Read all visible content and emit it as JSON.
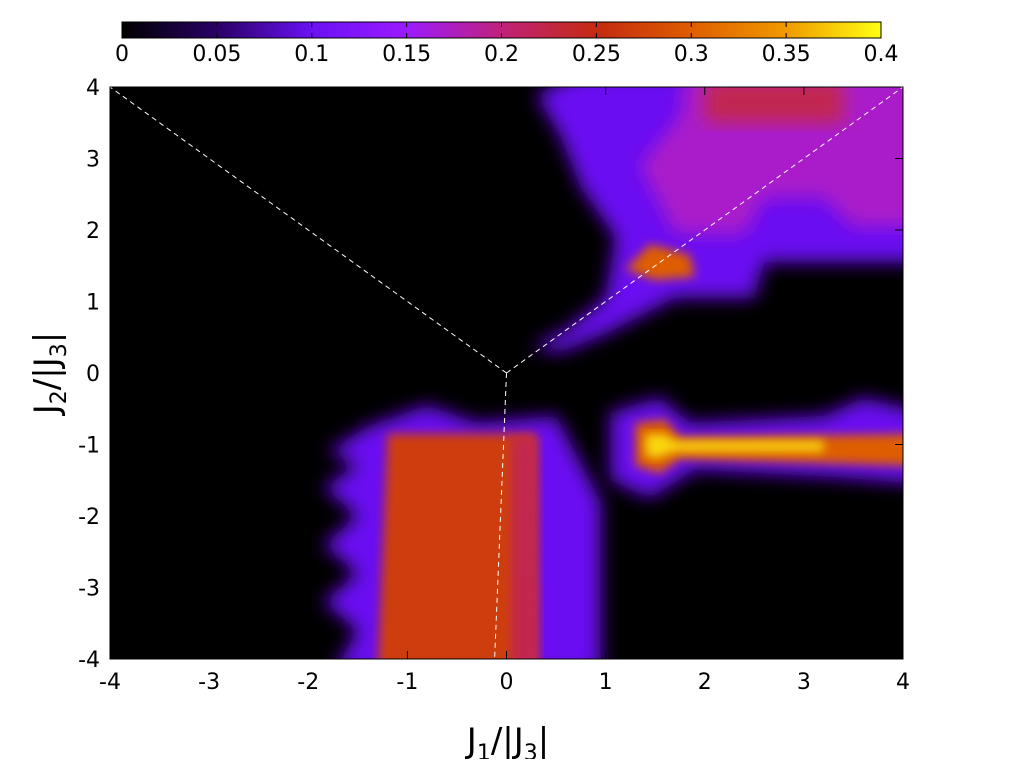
{
  "chart_data": {
    "type": "heatmap",
    "title": "",
    "xlabel": {
      "base1": "J",
      "sub1": "1",
      "mid": "/|J",
      "sub2": "3",
      "end": "|"
    },
    "ylabel": {
      "base1": "J",
      "sub1": "2",
      "mid": "/|J",
      "sub2": "3",
      "end": "|"
    },
    "xlim": [
      -4,
      4
    ],
    "ylim": [
      -4,
      4
    ],
    "x_ticks": [
      "-4",
      "-3",
      "-2",
      "-1",
      "0",
      "1",
      "2",
      "3",
      "4"
    ],
    "y_ticks": [
      "4",
      "3",
      "2",
      "1",
      "0",
      "-1",
      "-2",
      "-3",
      "-4"
    ],
    "colorbar": {
      "range": [
        0,
        0.4
      ],
      "ticks": [
        "0",
        "0.05",
        "0.1",
        "0.15",
        "0.2",
        "0.25",
        "0.3",
        "0.35",
        "0.4"
      ],
      "colors": [
        "#000000",
        "#2a0066",
        "#6a11f2",
        "#9b1aff",
        "#c0227a",
        "#c42a10",
        "#de5d00",
        "#f09a00",
        "#ffff12"
      ]
    },
    "regions": [
      {
        "name": "lower-middle plateau",
        "x": [
          -1.3,
          0.3
        ],
        "y": [
          -4.0,
          -0.85
        ],
        "value": 0.27
      },
      {
        "name": "right stripe",
        "x": [
          1.3,
          4.0
        ],
        "y": [
          -1.3,
          -0.7
        ],
        "value": 0.32
      },
      {
        "name": "upper-right region",
        "x": [
          0.6,
          4.0
        ],
        "y": [
          1.4,
          4.0
        ],
        "value": 0.17
      }
    ],
    "guide_lines": [
      {
        "from": [
          0,
          0
        ],
        "to": [
          -4,
          4
        ]
      },
      {
        "from": [
          0,
          0
        ],
        "to": [
          4,
          4
        ]
      },
      {
        "from": [
          0,
          0
        ],
        "to": [
          -0.12,
          -4
        ]
      }
    ],
    "grid": false,
    "legend": "colorbar top"
  }
}
